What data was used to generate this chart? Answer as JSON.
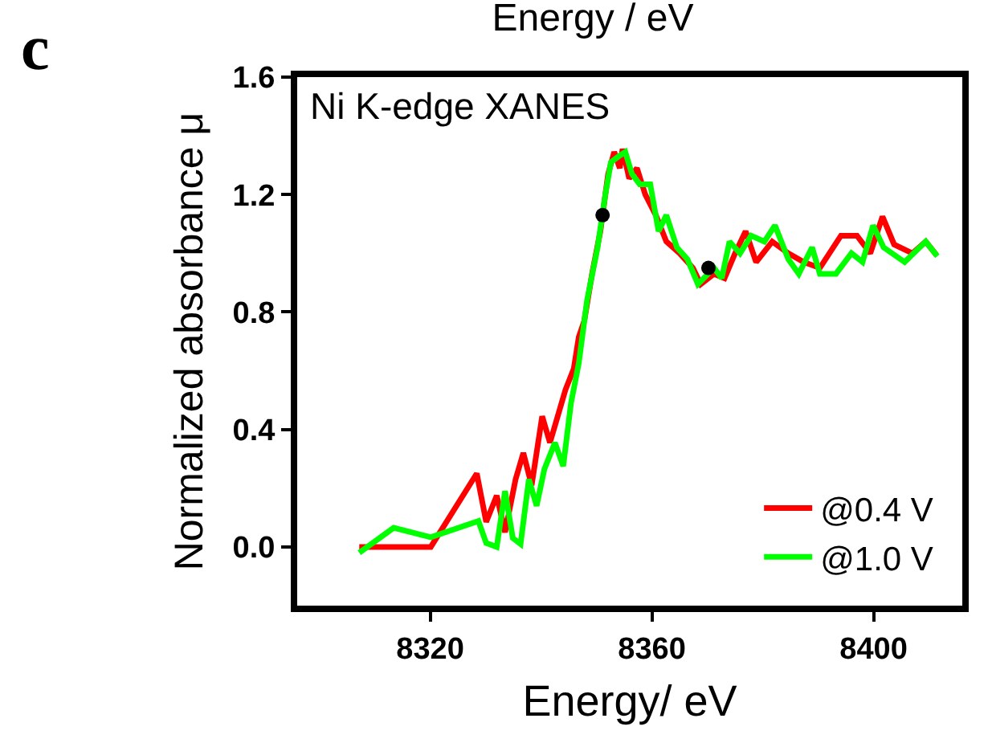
{
  "chart_data": {
    "type": "line",
    "title": "Energy / eV",
    "xlabel": "Energy/ eV",
    "ylabel": "Normalized absorbance μ",
    "annotations": [
      "c",
      "Ni K-edge XANES"
    ],
    "xlim": [
      8296,
      8416
    ],
    "xticks": [
      8320,
      8360,
      8400
    ],
    "ylim": [
      -0.2,
      1.6
    ],
    "yticks": [
      {
        "value": 0,
        "label": "0.0"
      },
      0.4,
      0.8,
      1.2,
      1.6
    ],
    "legend": "bottom right",
    "marker": "none",
    "line_style": "solid",
    "series": [
      {
        "name": "@0.4 V",
        "color": "#ff0000",
        "x": [
          8307.2,
          8320.1,
          8328.4,
          8330.1,
          8332.0,
          8333.5,
          8335.4,
          8336.8,
          8338.3,
          8340.2,
          8341.6,
          8343.0,
          8344.4,
          8345.9,
          8346.8,
          8347.8,
          8349.2,
          8350.7,
          8352.1,
          8353.2,
          8354.2,
          8354.7,
          8355.9,
          8357.3,
          8358.8,
          8360.7,
          8362.6,
          8365.0,
          8367.4,
          8368.8,
          8371.2,
          8373.1,
          8375.0,
          8376.9,
          8378.8,
          8381.7,
          8384.6,
          8387.4,
          8390.3,
          8394.1,
          8397.0,
          8399.4,
          8401.6,
          8403.7,
          8407.0,
          8409.4,
          8411.3
        ],
        "values": [
          0.0,
          0.0,
          0.25,
          0.085,
          0.175,
          0.05,
          0.23,
          0.32,
          0.21,
          0.445,
          0.355,
          0.445,
          0.535,
          0.607,
          0.715,
          0.77,
          0.93,
          1.075,
          1.27,
          1.345,
          1.29,
          1.355,
          1.255,
          1.29,
          1.2,
          1.13,
          1.04,
          1.0,
          0.95,
          0.895,
          0.93,
          0.915,
          1.0,
          1.075,
          0.97,
          1.04,
          1.0,
          0.97,
          0.95,
          1.06,
          1.06,
          1.0,
          1.125,
          1.03,
          1.0,
          1.04,
          0.995
        ]
      },
      {
        "name": "@1.0 V",
        "color": "#00ff00",
        "x": [
          8307.2,
          8313.4,
          8320.1,
          8328.7,
          8330.1,
          8332.0,
          8333.5,
          8334.9,
          8336.3,
          8337.8,
          8339.2,
          8340.6,
          8342.5,
          8344.0,
          8345.4,
          8346.8,
          8348.3,
          8350.2,
          8351.6,
          8352.6,
          8354.0,
          8355.2,
          8356.4,
          8357.8,
          8359.7,
          8361.2,
          8362.6,
          8364.5,
          8366.4,
          8368.3,
          8371.2,
          8372.6,
          8374.0,
          8375.9,
          8377.9,
          8380.3,
          8382.2,
          8384.6,
          8386.5,
          8388.9,
          8390.3,
          8393.2,
          8396.0,
          8398.0,
          8399.9,
          8401.8,
          8405.6,
          8409.4,
          8411.5
        ],
        "values": [
          -0.02,
          0.065,
          0.033,
          0.088,
          0.013,
          0.0,
          0.19,
          0.03,
          0.01,
          0.23,
          0.14,
          0.265,
          0.355,
          0.275,
          0.49,
          0.625,
          0.84,
          1.02,
          1.2,
          1.31,
          1.33,
          1.345,
          1.27,
          1.235,
          1.235,
          1.075,
          1.13,
          1.02,
          0.98,
          0.895,
          0.95,
          0.915,
          1.04,
          1.0,
          1.06,
          1.04,
          1.095,
          0.98,
          0.93,
          1.02,
          0.93,
          0.93,
          1.0,
          0.97,
          1.095,
          1.02,
          0.97,
          1.04,
          0.99
        ]
      },
      {
        "type": "scatter",
        "marker": "circle",
        "color": "#000000",
        "x": [
          8351.1,
          8370.2
        ],
        "values": [
          1.13,
          0.95
        ]
      }
    ]
  }
}
